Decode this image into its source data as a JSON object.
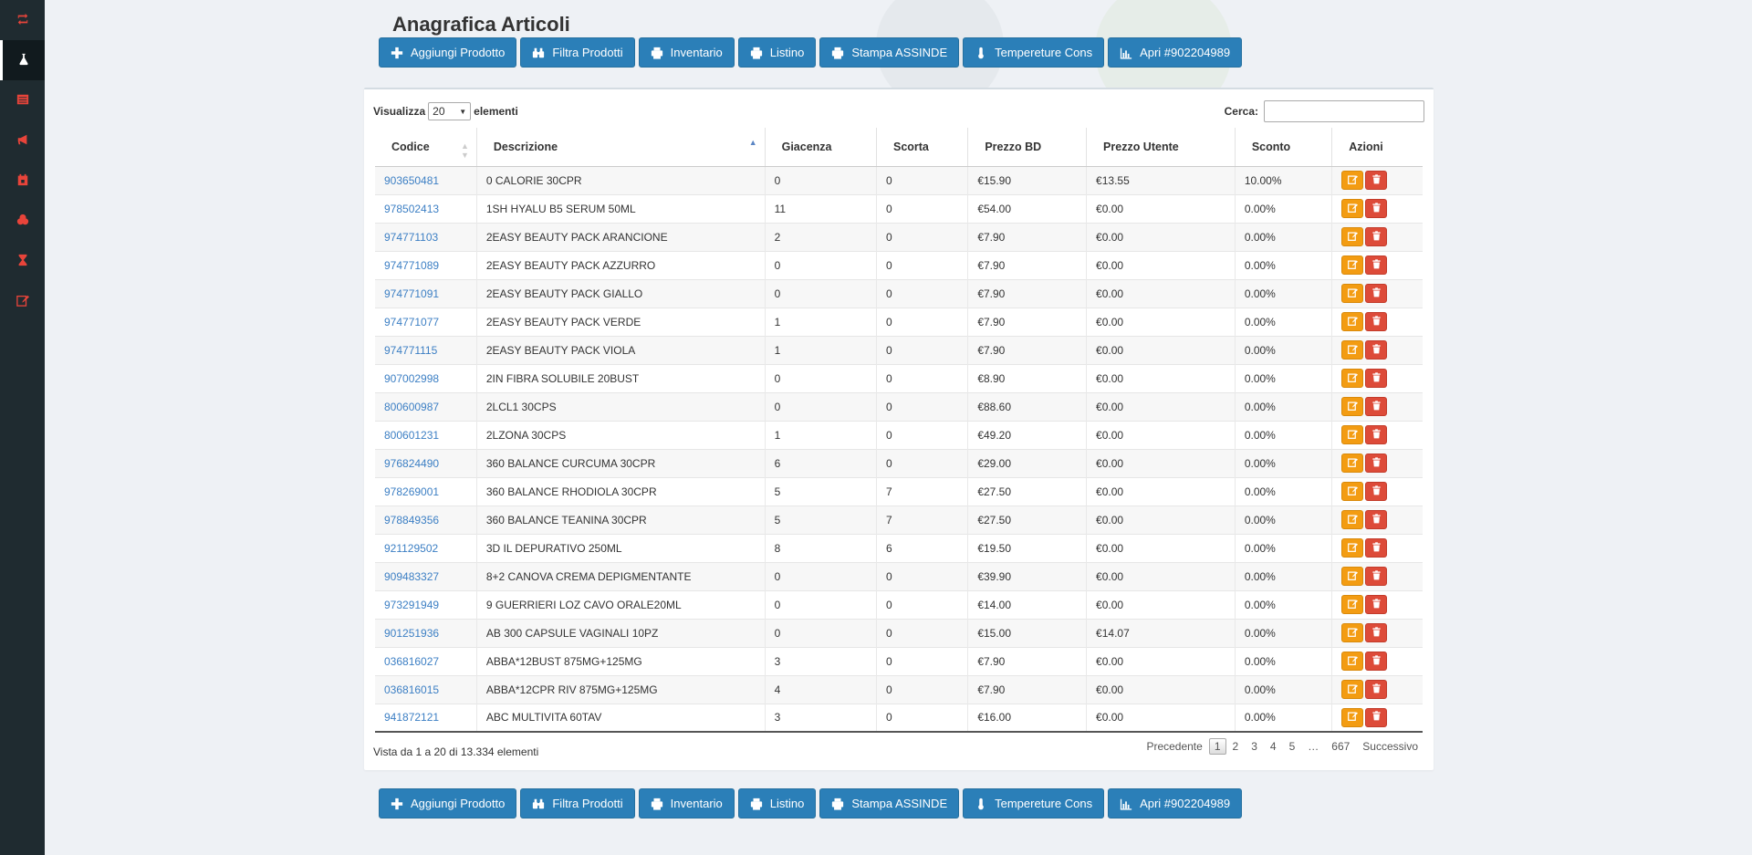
{
  "sidebar": {
    "items": [
      {
        "icon": "retweet-icon",
        "active": false
      },
      {
        "icon": "flask-icon",
        "active": true
      },
      {
        "icon": "list-icon",
        "active": false
      },
      {
        "icon": "bullhorn-icon",
        "active": false
      },
      {
        "icon": "calendar-icon",
        "active": false
      },
      {
        "icon": "cubes-icon",
        "active": false
      },
      {
        "icon": "hourglass-icon",
        "active": false
      },
      {
        "icon": "edit-icon",
        "active": false
      }
    ]
  },
  "page": {
    "title": "Anagrafica Articoli"
  },
  "toolbar": {
    "buttons": [
      {
        "label": "Aggiungi Prodotto",
        "icon": "plus-icon"
      },
      {
        "label": "Filtra Prodotti",
        "icon": "binoculars-icon"
      },
      {
        "label": "Inventario",
        "icon": "print-icon"
      },
      {
        "label": "Listino",
        "icon": "print-icon"
      },
      {
        "label": "Stampa ASSINDE",
        "icon": "print-icon"
      },
      {
        "label": "Tempereture Cons",
        "icon": "thermometer-icon"
      },
      {
        "label": "Apri #902204989",
        "icon": "bar-chart-icon"
      }
    ]
  },
  "table_controls": {
    "show_label": "Visualizza",
    "page_size": "20",
    "entries_label": "elementi",
    "search_label": "Cerca:",
    "search_value": ""
  },
  "table": {
    "columns": [
      "Codice",
      "Descrizione",
      "Giacenza",
      "Scorta",
      "Prezzo BD",
      "Prezzo Utente",
      "Sconto",
      "Azioni"
    ],
    "rows": [
      [
        "903650481",
        "0 CALORIE 30CPR",
        "0",
        "0",
        "€15.90",
        "€13.55",
        "10.00%"
      ],
      [
        "978502413",
        "1SH HYALU B5 SERUM 50ML",
        "11",
        "0",
        "€54.00",
        "€0.00",
        "0.00%"
      ],
      [
        "974771103",
        "2EASY BEAUTY PACK ARANCIONE",
        "2",
        "0",
        "€7.90",
        "€0.00",
        "0.00%"
      ],
      [
        "974771089",
        "2EASY BEAUTY PACK AZZURRO",
        "0",
        "0",
        "€7.90",
        "€0.00",
        "0.00%"
      ],
      [
        "974771091",
        "2EASY BEAUTY PACK GIALLO",
        "0",
        "0",
        "€7.90",
        "€0.00",
        "0.00%"
      ],
      [
        "974771077",
        "2EASY BEAUTY PACK VERDE",
        "1",
        "0",
        "€7.90",
        "€0.00",
        "0.00%"
      ],
      [
        "974771115",
        "2EASY BEAUTY PACK VIOLA",
        "1",
        "0",
        "€7.90",
        "€0.00",
        "0.00%"
      ],
      [
        "907002998",
        "2IN FIBRA SOLUBILE 20BUST",
        "0",
        "0",
        "€8.90",
        "€0.00",
        "0.00%"
      ],
      [
        "800600987",
        "2LCL1 30CPS",
        "0",
        "0",
        "€88.60",
        "€0.00",
        "0.00%"
      ],
      [
        "800601231",
        "2LZONA 30CPS",
        "1",
        "0",
        "€49.20",
        "€0.00",
        "0.00%"
      ],
      [
        "976824490",
        "360 BALANCE CURCUMA 30CPR",
        "6",
        "0",
        "€29.00",
        "€0.00",
        "0.00%"
      ],
      [
        "978269001",
        "360 BALANCE RHODIOLA 30CPR",
        "5",
        "7",
        "€27.50",
        "€0.00",
        "0.00%"
      ],
      [
        "978849356",
        "360 BALANCE TEANINA 30CPR",
        "5",
        "7",
        "€27.50",
        "€0.00",
        "0.00%"
      ],
      [
        "921129502",
        "3D IL DEPURATIVO 250ML",
        "8",
        "6",
        "€19.50",
        "€0.00",
        "0.00%"
      ],
      [
        "909483327",
        "8+2 CANOVA CREMA DEPIGMENTANTE",
        "0",
        "0",
        "€39.90",
        "€0.00",
        "0.00%"
      ],
      [
        "973291949",
        "9 GUERRIERI LOZ CAVO ORALE20ML",
        "0",
        "0",
        "€14.00",
        "€0.00",
        "0.00%"
      ],
      [
        "901251936",
        "AB 300 CAPSULE VAGINALI 10PZ",
        "0",
        "0",
        "€15.00",
        "€14.07",
        "0.00%"
      ],
      [
        "036816027",
        "ABBA*12BUST 875MG+125MG",
        "3",
        "0",
        "€7.90",
        "€0.00",
        "0.00%"
      ],
      [
        "036816015",
        "ABBA*12CPR RIV 875MG+125MG",
        "4",
        "0",
        "€7.90",
        "€0.00",
        "0.00%"
      ],
      [
        "941872121",
        "ABC MULTIVITA 60TAV",
        "3",
        "0",
        "€16.00",
        "€0.00",
        "0.00%"
      ]
    ]
  },
  "footer": {
    "info": "Vista da 1 a 20 di 13.334 elementi",
    "prev_label": "Precedente",
    "pages": [
      "1",
      "2",
      "3",
      "4",
      "5",
      "…",
      "667"
    ],
    "current_page": "1",
    "next_label": "Successivo"
  },
  "colors": {
    "primary": "#2b7fb8",
    "edit": "#f39c12",
    "delete": "#dd4b39",
    "sidebar": "#1f2b30",
    "link": "#3c7fc4"
  }
}
